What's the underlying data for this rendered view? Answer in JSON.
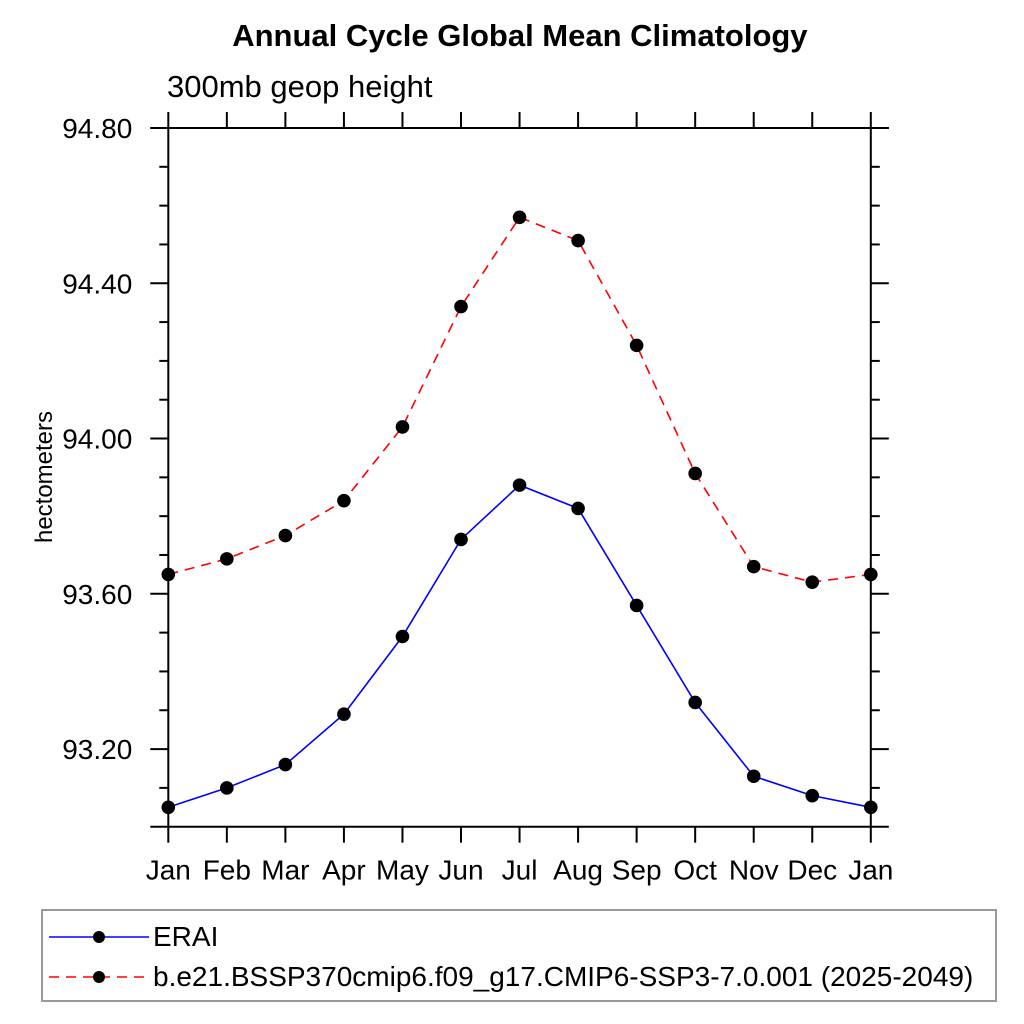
{
  "page": {
    "background": "#ffffff"
  },
  "chart_data": {
    "type": "line",
    "title": "Annual Cycle Global Mean Climatology",
    "subtitle": "300mb geop height",
    "ylabel": "hectometers",
    "categories": [
      "Jan",
      "Feb",
      "Mar",
      "Apr",
      "May",
      "Jun",
      "Jul",
      "Aug",
      "Sep",
      "Oct",
      "Nov",
      "Dec",
      "Jan"
    ],
    "ylim": [
      93.0,
      94.8
    ],
    "yticks_major": [
      93.2,
      93.6,
      94.0,
      94.4,
      94.8
    ],
    "ytick_labels": [
      "93.20",
      "93.60",
      "94.00",
      "94.40",
      "94.80"
    ],
    "ytick_minor_step": 0.1,
    "grid": false,
    "legend_position": "bottom",
    "axis_color": "#000000",
    "marker": "filled-circle",
    "marker_color": "#000000",
    "series": [
      {
        "name": "ERAI",
        "color": "#0000ff",
        "line_style": "solid",
        "values": [
          93.05,
          93.1,
          93.16,
          93.29,
          93.49,
          93.74,
          93.88,
          93.82,
          93.57,
          93.32,
          93.13,
          93.08,
          93.05
        ]
      },
      {
        "name": "b.e21.BSSP370cmip6.f09_g17.CMIP6-SSP3-7.0.001 (2025-2049)",
        "color": "#ff0000",
        "line_style": "dashed",
        "values": [
          93.65,
          93.69,
          93.75,
          93.84,
          94.03,
          94.34,
          94.57,
          94.51,
          94.24,
          93.91,
          93.67,
          93.63,
          93.65
        ]
      }
    ]
  }
}
